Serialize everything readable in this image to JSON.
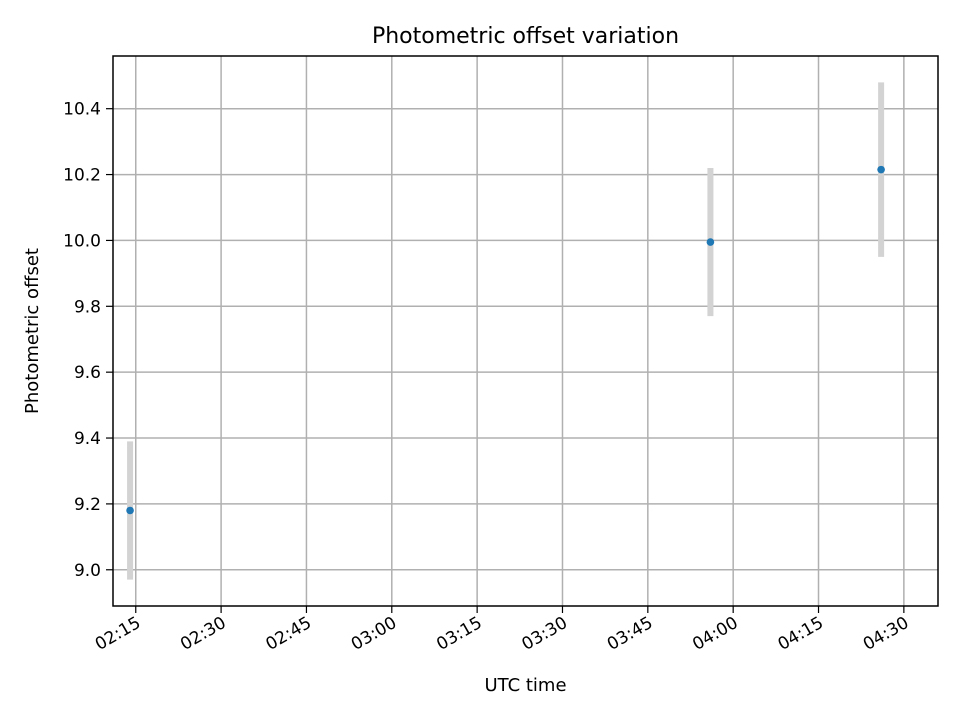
{
  "chart_data": {
    "type": "scatter",
    "title": "Photometric offset variation",
    "xlabel": "UTC time",
    "ylabel": "Photometric offset",
    "grid": true,
    "legend": "none",
    "xlim": [
      "02:11",
      "04:36"
    ],
    "ylim": [
      8.89,
      10.56
    ],
    "x_ticks": [
      "02:15",
      "02:30",
      "02:45",
      "03:00",
      "03:15",
      "03:30",
      "03:45",
      "04:00",
      "04:15",
      "04:30"
    ],
    "y_ticks": [
      "9.0",
      "9.2",
      "9.4",
      "9.6",
      "9.8",
      "10.0",
      "10.2",
      "10.4"
    ],
    "series": [
      {
        "x": [
          "02:14",
          "03:56",
          "04:26"
        ],
        "y": [
          9.18,
          9.995,
          10.215
        ],
        "yerr_low": [
          8.97,
          9.77,
          9.95
        ],
        "yerr_high": [
          9.39,
          10.22,
          10.48
        ]
      }
    ],
    "colors": {
      "marker": "#1f77b4",
      "errorbar": "#d3d3d3",
      "grid": "#b0b0b0"
    }
  }
}
